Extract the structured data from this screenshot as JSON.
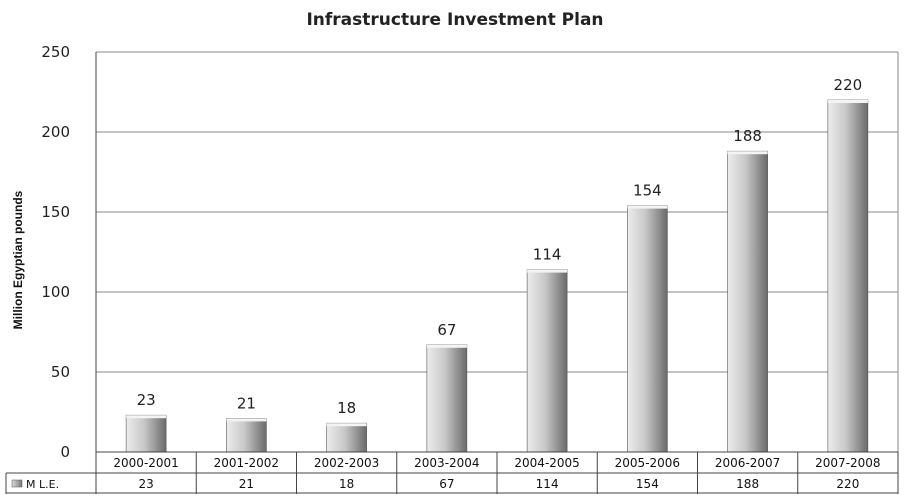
{
  "chart_data": {
    "type": "bar",
    "title": "Infrastructure Investment Plan",
    "ylabel": "Million Egyptian pounds",
    "xlabel": "",
    "categories": [
      "2000-2001",
      "2001-2002",
      "2002-2003",
      "2003-2004",
      "2004-2005",
      "2005-2006",
      "2006-2007",
      "2007-2008"
    ],
    "series": [
      {
        "name": "M L.E.",
        "values": [
          23,
          21,
          18,
          67,
          114,
          154,
          188,
          220
        ]
      }
    ],
    "ylim": [
      0,
      250
    ],
    "yticks": [
      0,
      50,
      100,
      150,
      200,
      250
    ],
    "grid": true,
    "data_table": true,
    "colors": {
      "bar_light": "#e6e6e6",
      "bar_dark": "#6e6e6e",
      "grid": "#8a8a8a",
      "axis": "#444444"
    }
  }
}
